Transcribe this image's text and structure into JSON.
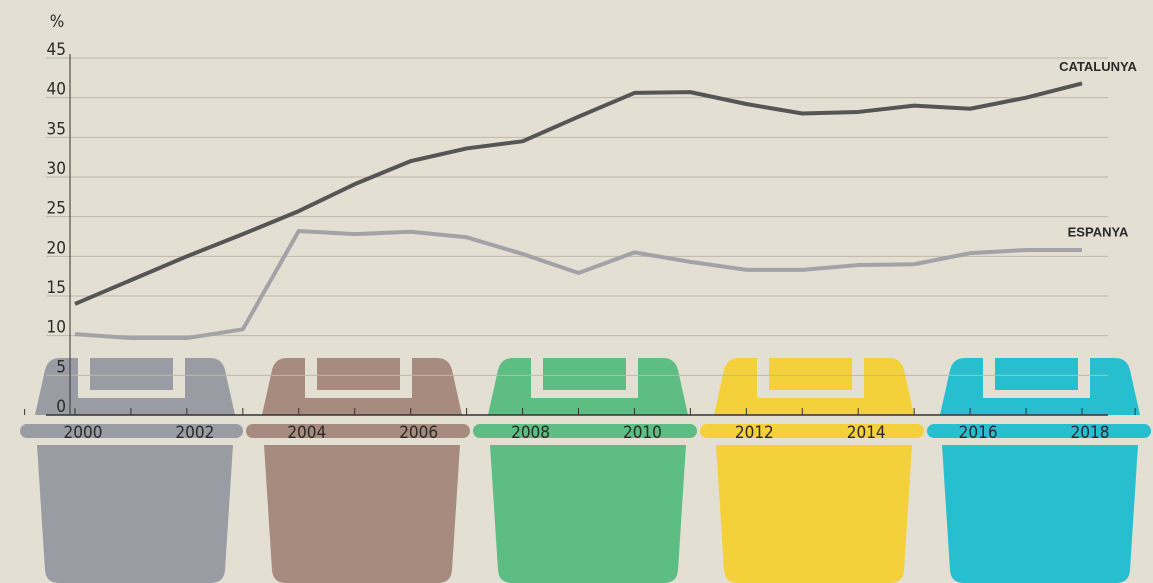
{
  "chart_data": {
    "type": "line",
    "y_label": "%",
    "x": [
      2000,
      2001,
      2002,
      2003,
      2004,
      2005,
      2006,
      2007,
      2008,
      2009,
      2010,
      2011,
      2012,
      2013,
      2014,
      2015,
      2016,
      2017,
      2018
    ],
    "series": [
      {
        "name": "CATALUNYA",
        "color": "#555555",
        "values": [
          14,
          17,
          20,
          22.8,
          25.7,
          29.1,
          32,
          33.6,
          34.5,
          37.6,
          40.6,
          40.7,
          39.2,
          38,
          38.2,
          39,
          38.6,
          40,
          41.8
        ]
      },
      {
        "name": "ESPANYA",
        "color": "#a2a2a7",
        "values": [
          10.2,
          9.7,
          9.7,
          10.8,
          23.2,
          22.8,
          23.1,
          22.4,
          20.3,
          17.9,
          20.5,
          19.3,
          18.3,
          18.3,
          18.9,
          19,
          20.4,
          20.8,
          20.8
        ]
      }
    ],
    "xlim": [
      2000,
      2018
    ],
    "xticks": [
      2000,
      2002,
      2004,
      2006,
      2008,
      2010,
      2012,
      2014,
      2016,
      2018
    ],
    "ylim": [
      0,
      45
    ],
    "yticks": [
      0,
      5,
      10,
      15,
      20,
      25,
      30,
      35,
      40,
      45
    ],
    "grid": true
  }
}
